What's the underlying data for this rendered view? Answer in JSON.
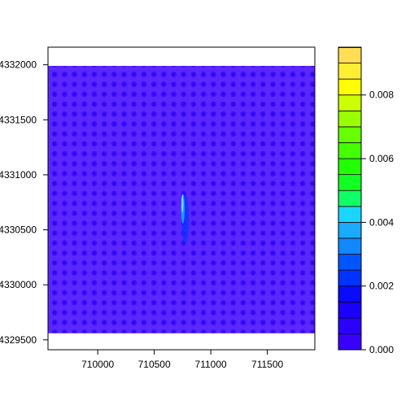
{
  "chart_data": {
    "type": "heatmap",
    "title": "",
    "xlabel": "",
    "ylabel": "",
    "xlim": [
      709560,
      711920
    ],
    "ylim": [
      4329410,
      4332160
    ],
    "data_extent": {
      "x": [
        709560,
        711920
      ],
      "y": [
        4329560,
        4331990
      ]
    },
    "x_ticks": [
      710000,
      710500,
      711000,
      711500
    ],
    "x_tick_labels": [
      "710000",
      "710500",
      "711000",
      "711500"
    ],
    "y_ticks": [
      4329500,
      4330000,
      4330500,
      4331000,
      4331500,
      4332000
    ],
    "y_tick_labels": [
      "4329500",
      "4330000",
      "4330500",
      "4331000",
      "4331500",
      "4332000"
    ],
    "field": {
      "description_value": "near-zero background concentration across the grid",
      "background_value": 0.0002,
      "grid_dots": {
        "nx": 27,
        "ny": 20
      },
      "hotspot": {
        "x": [
          710720,
          710800
        ],
        "y": [
          4330400,
          4330850
        ],
        "peak_value": 0.004
      }
    },
    "colorbar": {
      "min": 0.0,
      "max": 0.0095,
      "levels": [
        0.0,
        0.0005,
        0.001,
        0.0015,
        0.002,
        0.0025,
        0.003,
        0.0035,
        0.004,
        0.0045,
        0.005,
        0.0055,
        0.006,
        0.0065,
        0.007,
        0.0075,
        0.008,
        0.0085,
        0.009,
        0.0095
      ],
      "colors": [
        "#3a00ff",
        "#2b00ff",
        "#1a00ff",
        "#0a0aff",
        "#0033ff",
        "#0055ff",
        "#1188ff",
        "#1aaaff",
        "#1ad6ff",
        "#11ff66",
        "#11ff22",
        "#22ff00",
        "#44ff00",
        "#66ff00",
        "#99ff00",
        "#ccff00",
        "#ffff00",
        "#ffee33",
        "#ffdd55",
        "#ffd87a"
      ],
      "ticks": [
        0.0,
        0.002,
        0.004,
        0.006,
        0.008
      ],
      "tick_labels": [
        "0.000",
        "0.002",
        "0.004",
        "0.006",
        "0.008"
      ]
    }
  }
}
